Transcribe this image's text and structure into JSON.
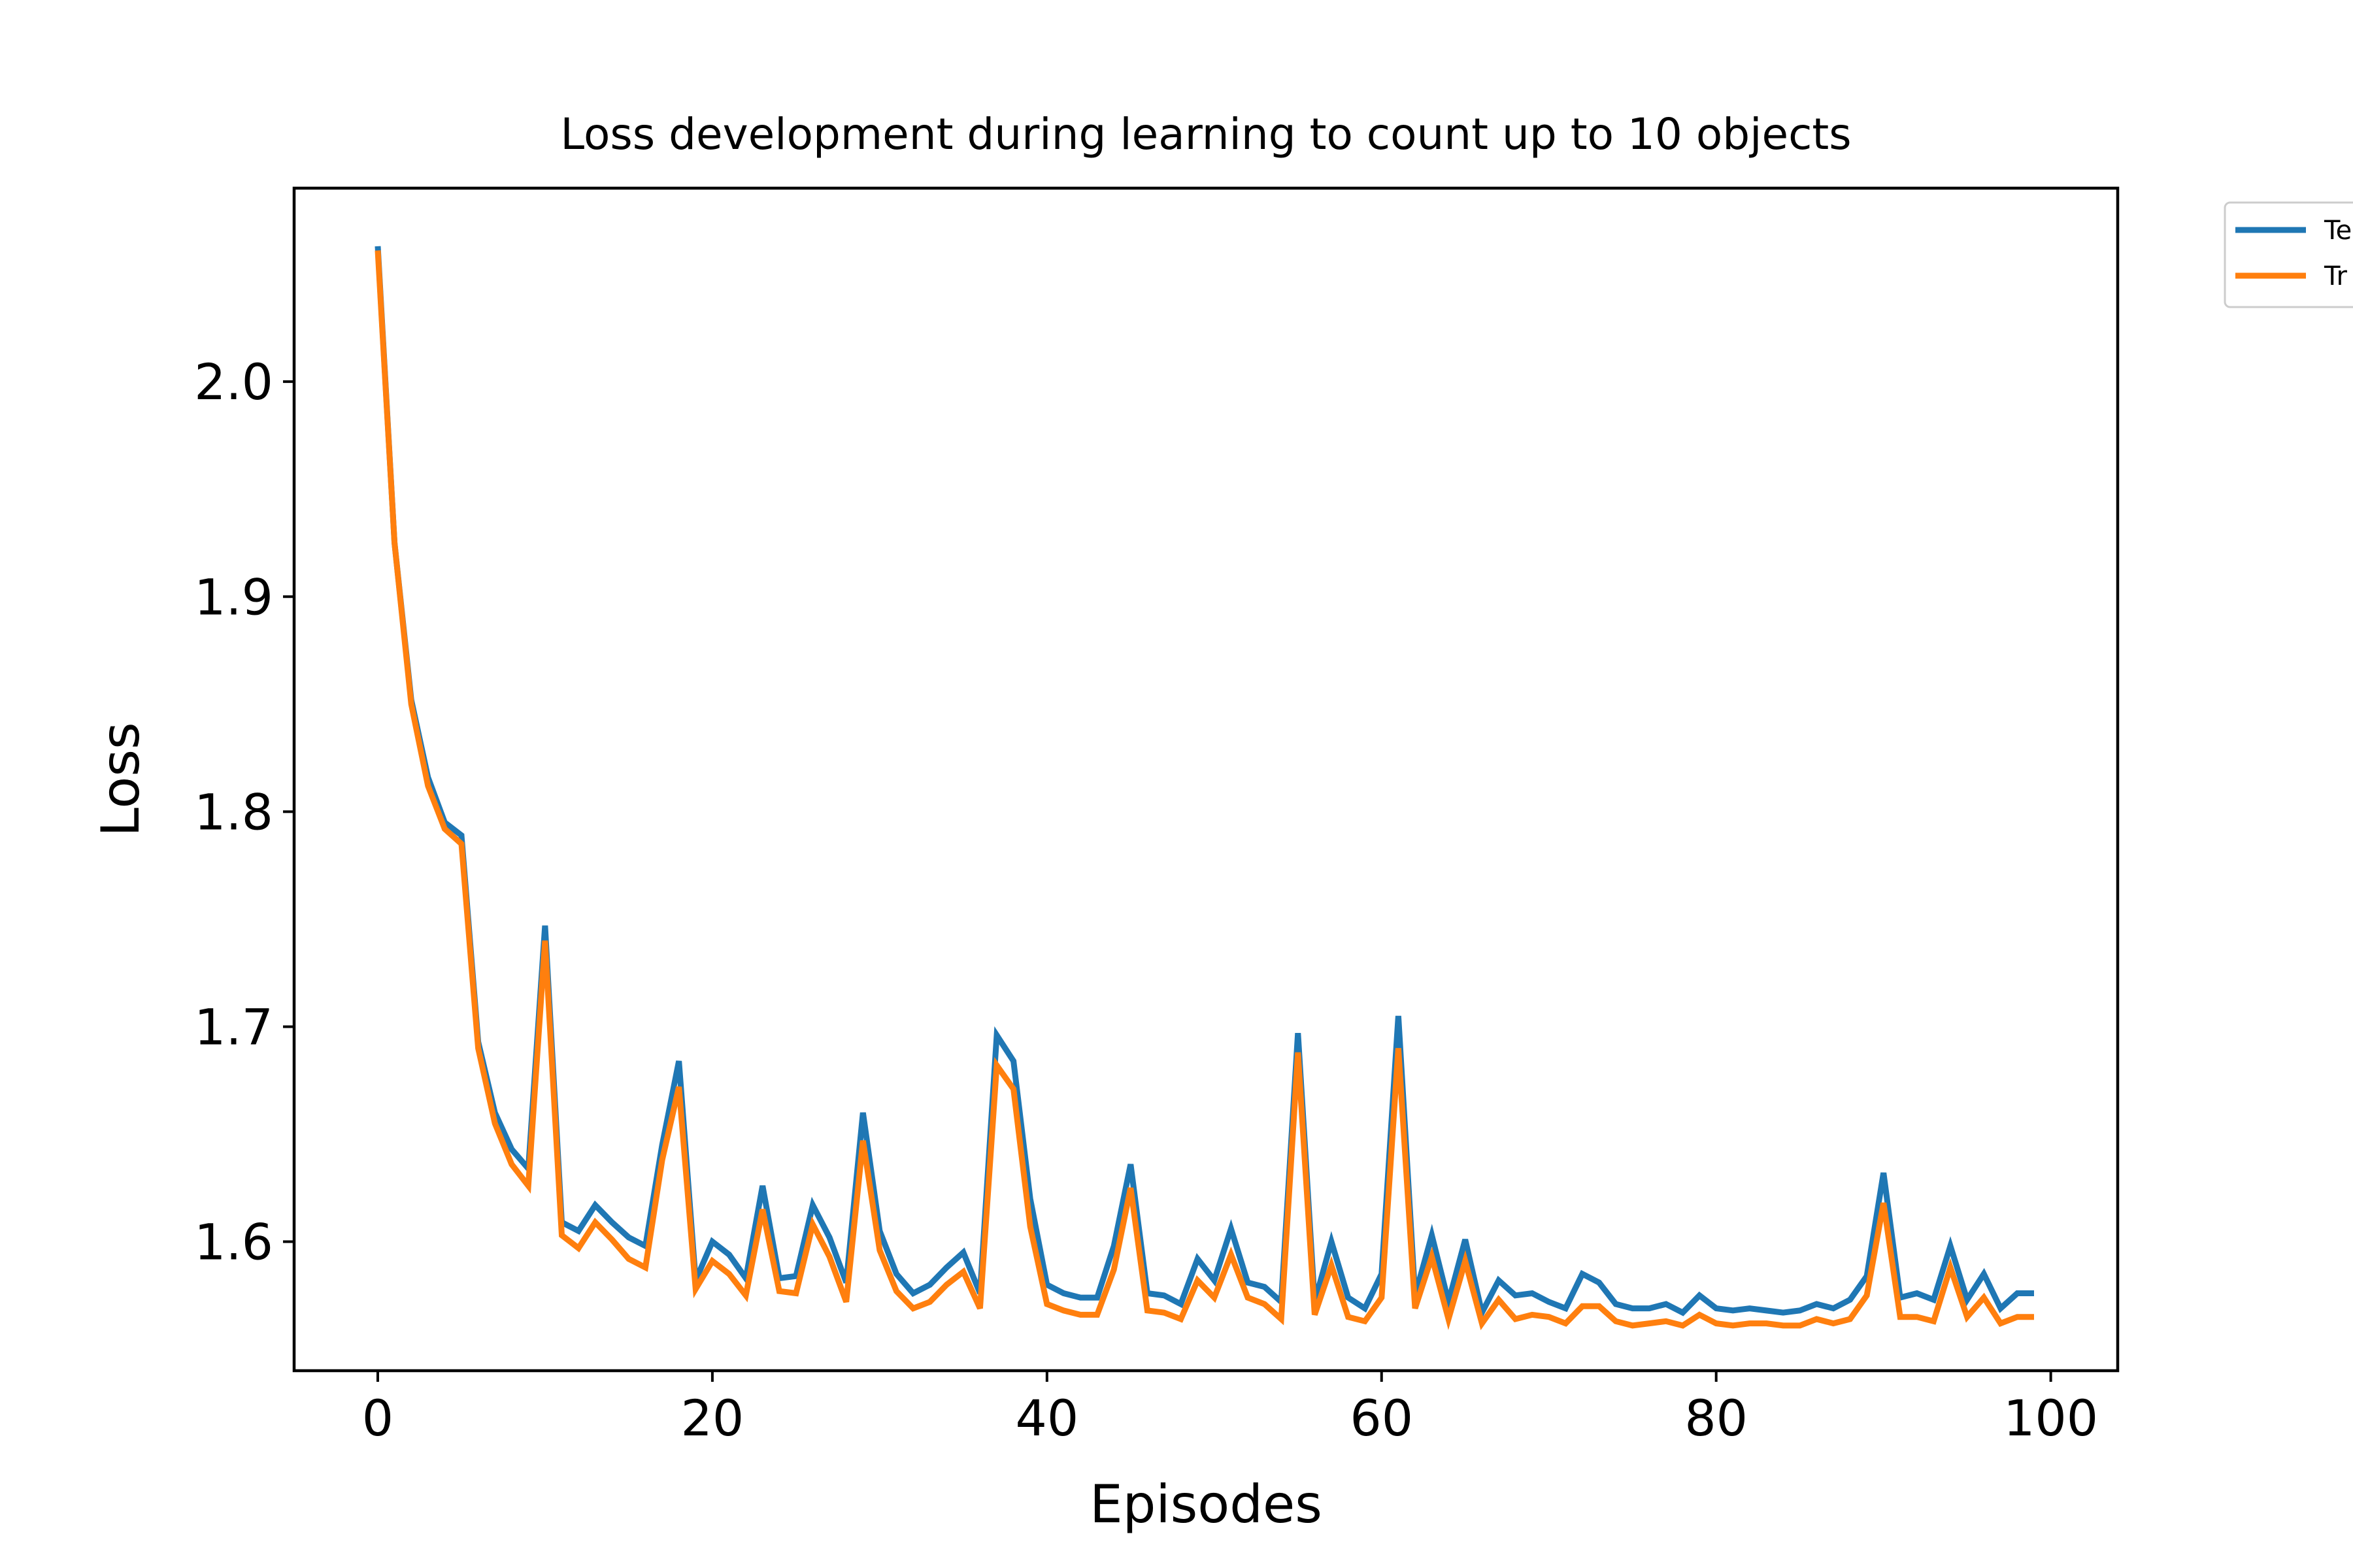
{
  "chart_data": {
    "type": "line",
    "title": "Loss development during learning to count up to 10 objects",
    "xlabel": "Episodes",
    "ylabel": "Loss",
    "xlim": [
      -5,
      104
    ],
    "ylim": [
      1.54,
      2.09
    ],
    "xticks": [
      0,
      20,
      40,
      60,
      80,
      100
    ],
    "yticks": [
      1.6,
      1.7,
      1.8,
      1.9,
      2.0
    ],
    "xtick_labels": [
      "0",
      "20",
      "40",
      "60",
      "80",
      "100"
    ],
    "ytick_labels": [
      "1.6",
      "1.7",
      "1.8",
      "1.9",
      "2.0"
    ],
    "grid": false,
    "legend_position": "outside-top-right",
    "x": [
      0,
      1,
      2,
      3,
      4,
      5,
      6,
      7,
      8,
      9,
      10,
      11,
      12,
      13,
      14,
      15,
      16,
      17,
      18,
      19,
      20,
      21,
      22,
      23,
      24,
      25,
      26,
      27,
      28,
      29,
      30,
      31,
      32,
      33,
      34,
      35,
      36,
      37,
      38,
      39,
      40,
      41,
      42,
      43,
      44,
      45,
      46,
      47,
      48,
      49,
      50,
      51,
      52,
      53,
      54,
      55,
      56,
      57,
      58,
      59,
      60,
      61,
      62,
      63,
      64,
      65,
      66,
      67,
      68,
      69,
      70,
      71,
      72,
      73,
      74,
      75,
      76,
      77,
      78,
      79,
      80,
      81,
      82,
      83,
      84,
      85,
      86,
      87,
      88,
      89,
      90,
      91,
      92,
      93,
      94,
      95,
      96,
      97,
      98,
      99
    ],
    "series": [
      {
        "name": "Te",
        "color": "#1f77b4",
        "values": [
          2.063,
          1.925,
          1.852,
          1.816,
          1.795,
          1.789,
          1.693,
          1.66,
          1.643,
          1.634,
          1.747,
          1.609,
          1.605,
          1.617,
          1.609,
          1.602,
          1.598,
          1.645,
          1.684,
          1.582,
          1.6,
          1.594,
          1.583,
          1.626,
          1.583,
          1.584,
          1.617,
          1.602,
          1.581,
          1.66,
          1.605,
          1.585,
          1.576,
          1.58,
          1.588,
          1.595,
          1.576,
          1.696,
          1.684,
          1.62,
          1.58,
          1.576,
          1.574,
          1.574,
          1.598,
          1.636,
          1.576,
          1.575,
          1.571,
          1.592,
          1.582,
          1.606,
          1.581,
          1.579,
          1.572,
          1.697,
          1.572,
          1.6,
          1.574,
          1.569,
          1.585,
          1.705,
          1.575,
          1.603,
          1.572,
          1.601,
          1.567,
          1.582,
          1.575,
          1.576,
          1.572,
          1.569,
          1.585,
          1.581,
          1.571,
          1.569,
          1.569,
          1.571,
          1.567,
          1.575,
          1.569,
          1.568,
          1.569,
          1.568,
          1.567,
          1.568,
          1.571,
          1.569,
          1.573,
          1.584,
          1.632,
          1.574,
          1.576,
          1.573,
          1.598,
          1.573,
          1.585,
          1.569,
          1.576,
          1.576
        ]
      },
      {
        "name": "Tr",
        "color": "#ff7f0e",
        "values": [
          2.061,
          1.925,
          1.85,
          1.812,
          1.792,
          1.785,
          1.69,
          1.655,
          1.636,
          1.626,
          1.74,
          1.603,
          1.597,
          1.609,
          1.601,
          1.592,
          1.588,
          1.638,
          1.672,
          1.578,
          1.591,
          1.585,
          1.575,
          1.615,
          1.577,
          1.576,
          1.608,
          1.593,
          1.572,
          1.647,
          1.596,
          1.577,
          1.569,
          1.572,
          1.58,
          1.586,
          1.569,
          1.682,
          1.671,
          1.607,
          1.571,
          1.568,
          1.566,
          1.566,
          1.587,
          1.625,
          1.568,
          1.567,
          1.564,
          1.582,
          1.574,
          1.594,
          1.574,
          1.571,
          1.564,
          1.688,
          1.566,
          1.589,
          1.565,
          1.563,
          1.574,
          1.69,
          1.569,
          1.593,
          1.564,
          1.591,
          1.562,
          1.573,
          1.564,
          1.566,
          1.565,
          1.562,
          1.57,
          1.57,
          1.563,
          1.561,
          1.562,
          1.563,
          1.561,
          1.566,
          1.562,
          1.561,
          1.562,
          1.562,
          1.561,
          1.561,
          1.564,
          1.562,
          1.564,
          1.575,
          1.618,
          1.565,
          1.565,
          1.563,
          1.588,
          1.565,
          1.574,
          1.562,
          1.565,
          1.565
        ]
      }
    ]
  }
}
